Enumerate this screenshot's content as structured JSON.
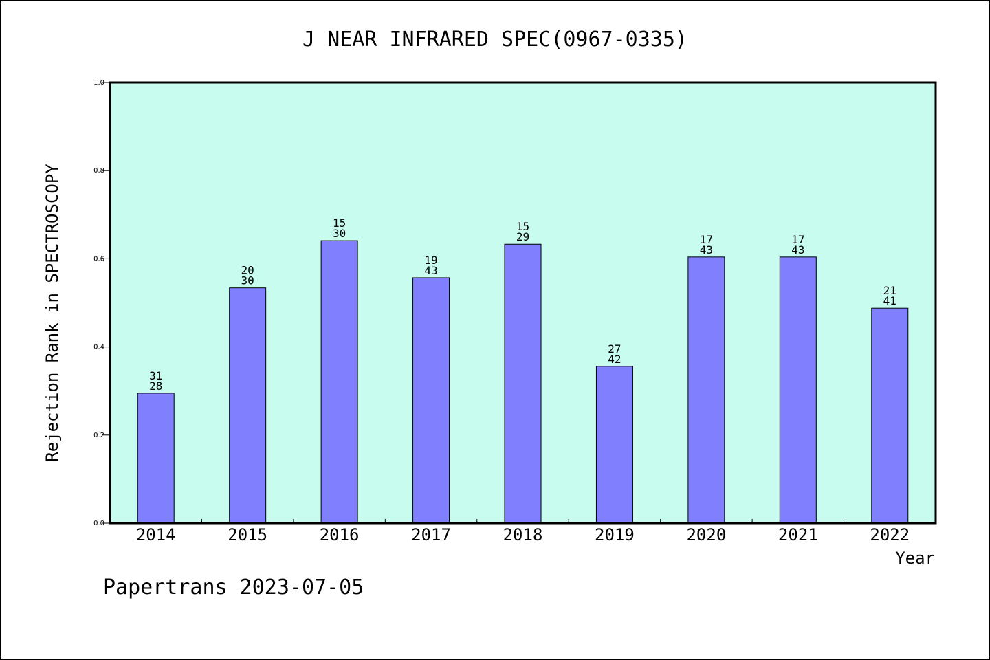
{
  "chart_data": {
    "type": "bar",
    "title": "J NEAR INFRARED SPEC(0967-0335)",
    "xlabel": "Year",
    "ylabel": "Rejection Rank in SPECTROSCOPY",
    "ylim": [
      0.0,
      1.0
    ],
    "yticks": [
      "0.0",
      "0.2",
      "0.4",
      "0.6",
      "0.8",
      "1.0"
    ],
    "categories": [
      "2014",
      "2015",
      "2016",
      "2017",
      "2018",
      "2019",
      "2020",
      "2021",
      "2022"
    ],
    "values": [
      0.295,
      0.534,
      0.641,
      0.557,
      0.633,
      0.356,
      0.604,
      0.604,
      0.488
    ],
    "label_top": [
      "31",
      "20",
      "15",
      "19",
      "15",
      "27",
      "17",
      "17",
      "21"
    ],
    "label_bottom": [
      "28",
      "30",
      "30",
      "43",
      "29",
      "42",
      "43",
      "43",
      "41"
    ],
    "grid": false,
    "colors": {
      "bar": "#8080ff",
      "plot_background": "#c8fcee",
      "axis": "#000000"
    }
  },
  "footer": {
    "text": "Papertrans 2023-07-05"
  }
}
